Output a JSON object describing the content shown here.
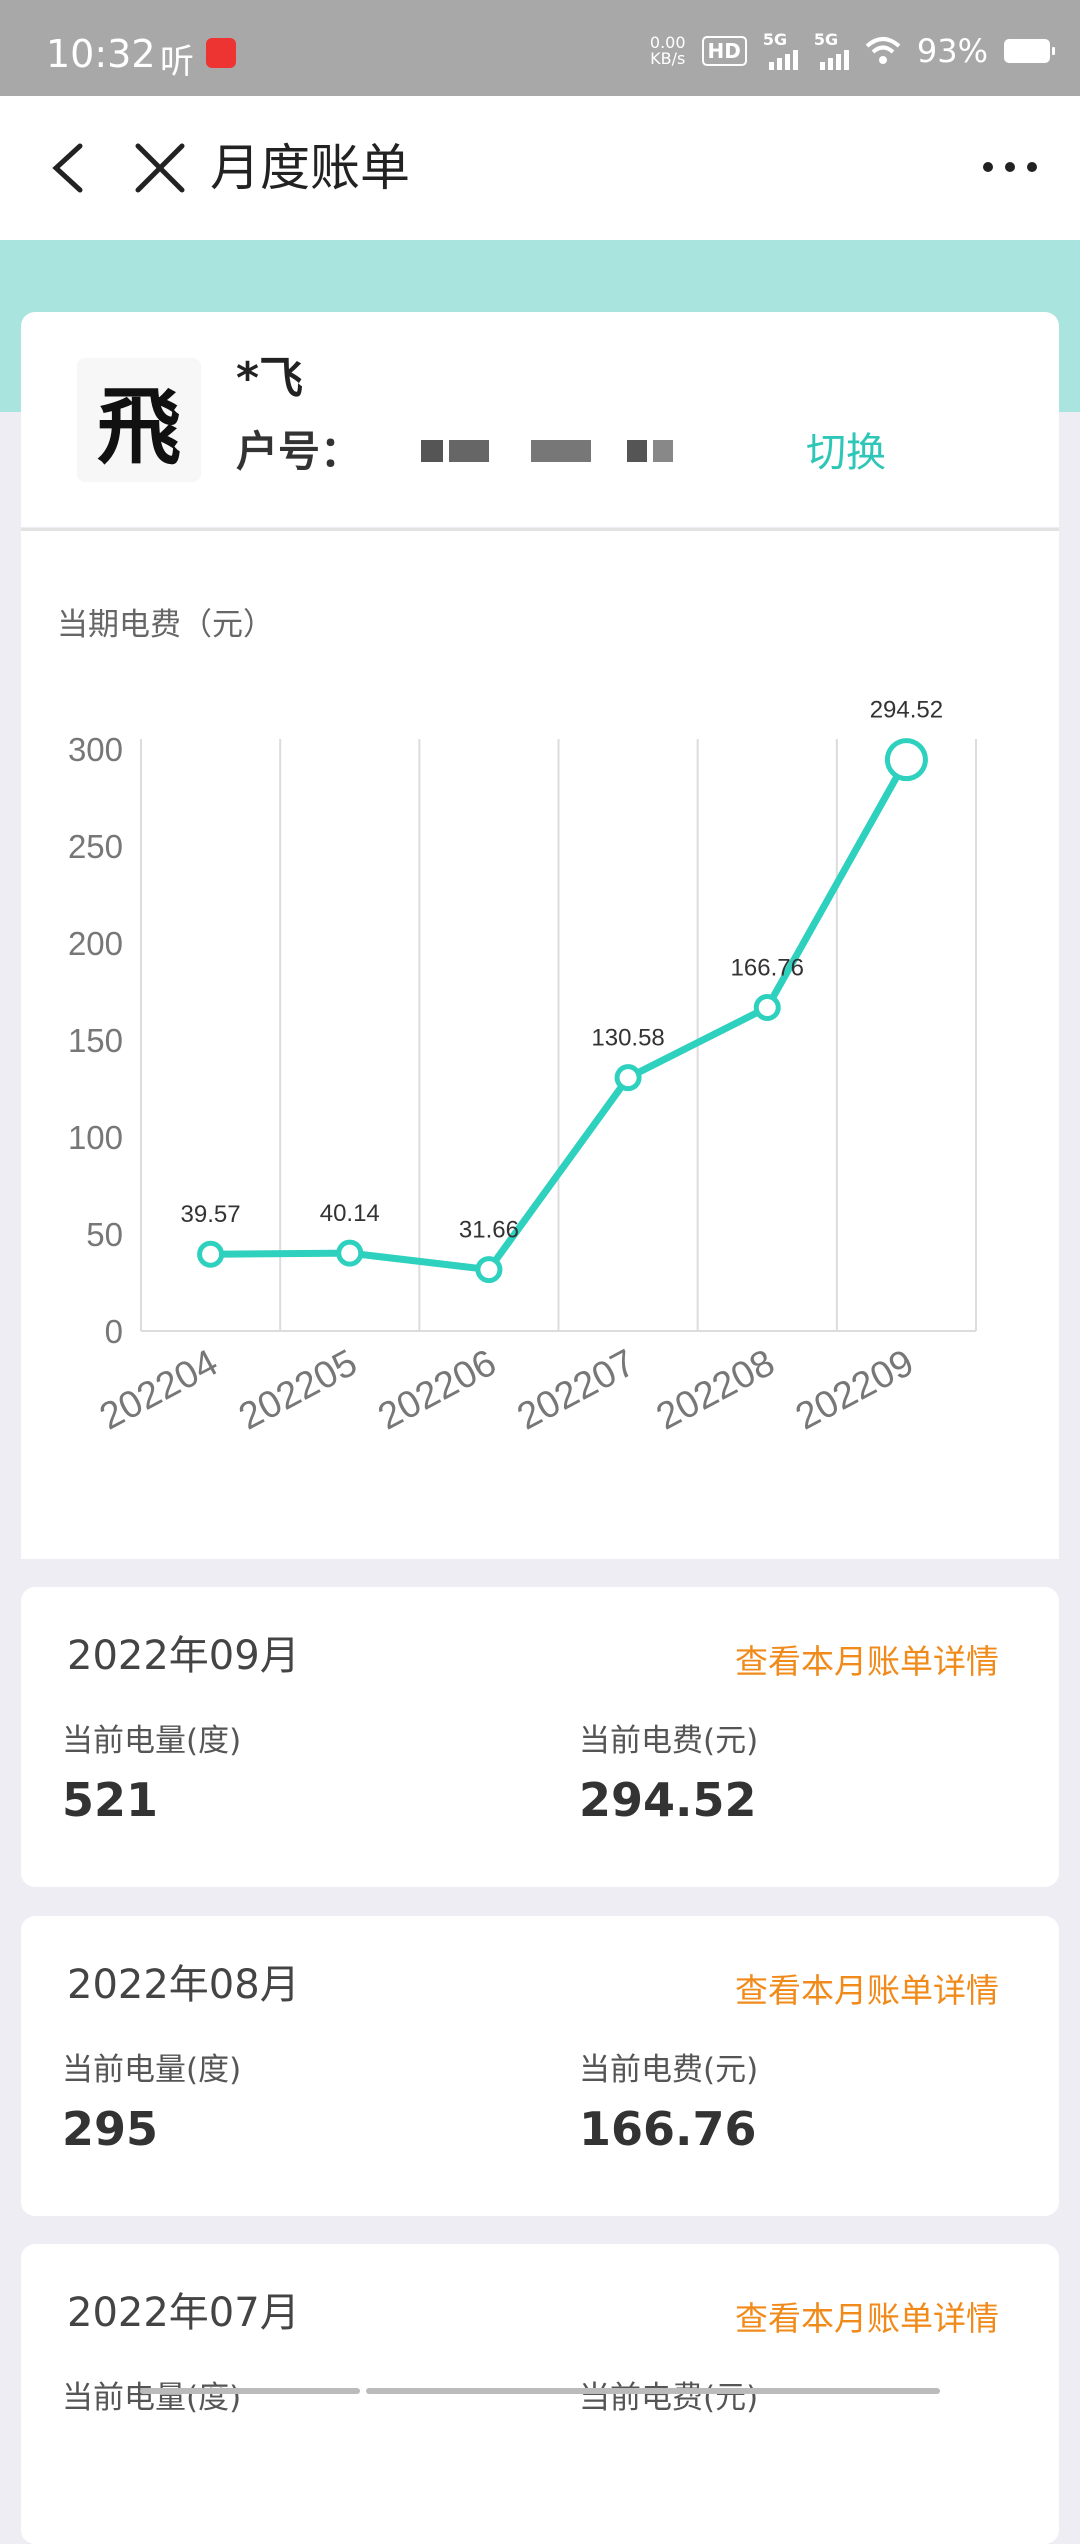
{
  "status_bar": {
    "time": "10:32",
    "listen": "听",
    "net_speed_value": "0.00",
    "net_speed_unit": "KB/s",
    "hd": "HD",
    "signal_1": "5G",
    "signal_2": "5G",
    "battery": "93%"
  },
  "nav": {
    "title": "月度账单",
    "back_icon": "chevron-left-icon",
    "close_icon": "close-icon",
    "more_icon": "more-horizontal-icon"
  },
  "account": {
    "avatar_char": "飛",
    "name": "*飞",
    "number_label": "户号：",
    "switch_label": "切换"
  },
  "chart_title": "当期电费（元）",
  "chart_data": {
    "type": "line",
    "categories": [
      "202204",
      "202205",
      "202206",
      "202207",
      "202208",
      "202209"
    ],
    "values": [
      39.57,
      40.14,
      31.66,
      130.58,
      166.76,
      294.52
    ],
    "value_labels": [
      "39.57",
      "40.14",
      "31.66",
      "130.58",
      "166.76",
      "294.52"
    ],
    "y_ticks": [
      "0",
      "50",
      "100",
      "150",
      "200",
      "250",
      "300"
    ],
    "ylim": [
      0,
      300
    ],
    "title": "当期电费（元）",
    "grid": "vertical",
    "color": "#2ed0be"
  },
  "bills": [
    {
      "month": "2022年09月",
      "link": "查看本月账单详情",
      "kwh_label": "当前电量(度)",
      "kwh": "521",
      "fee_label": "当前电费(元)",
      "fee": "294.52"
    },
    {
      "month": "2022年08月",
      "link": "查看本月账单详情",
      "kwh_label": "当前电量(度)",
      "kwh": "295",
      "fee_label": "当前电费(元)",
      "fee": "166.76"
    },
    {
      "month": "2022年07月",
      "link": "查看本月账单详情",
      "kwh_label": "当前电量(度)",
      "kwh": "",
      "fee_label": "当前电费(元)",
      "fee": ""
    }
  ],
  "colors": {
    "accent": "#2ec6b7",
    "link_orange": "#f08b1b",
    "band": "#a9e4de"
  }
}
